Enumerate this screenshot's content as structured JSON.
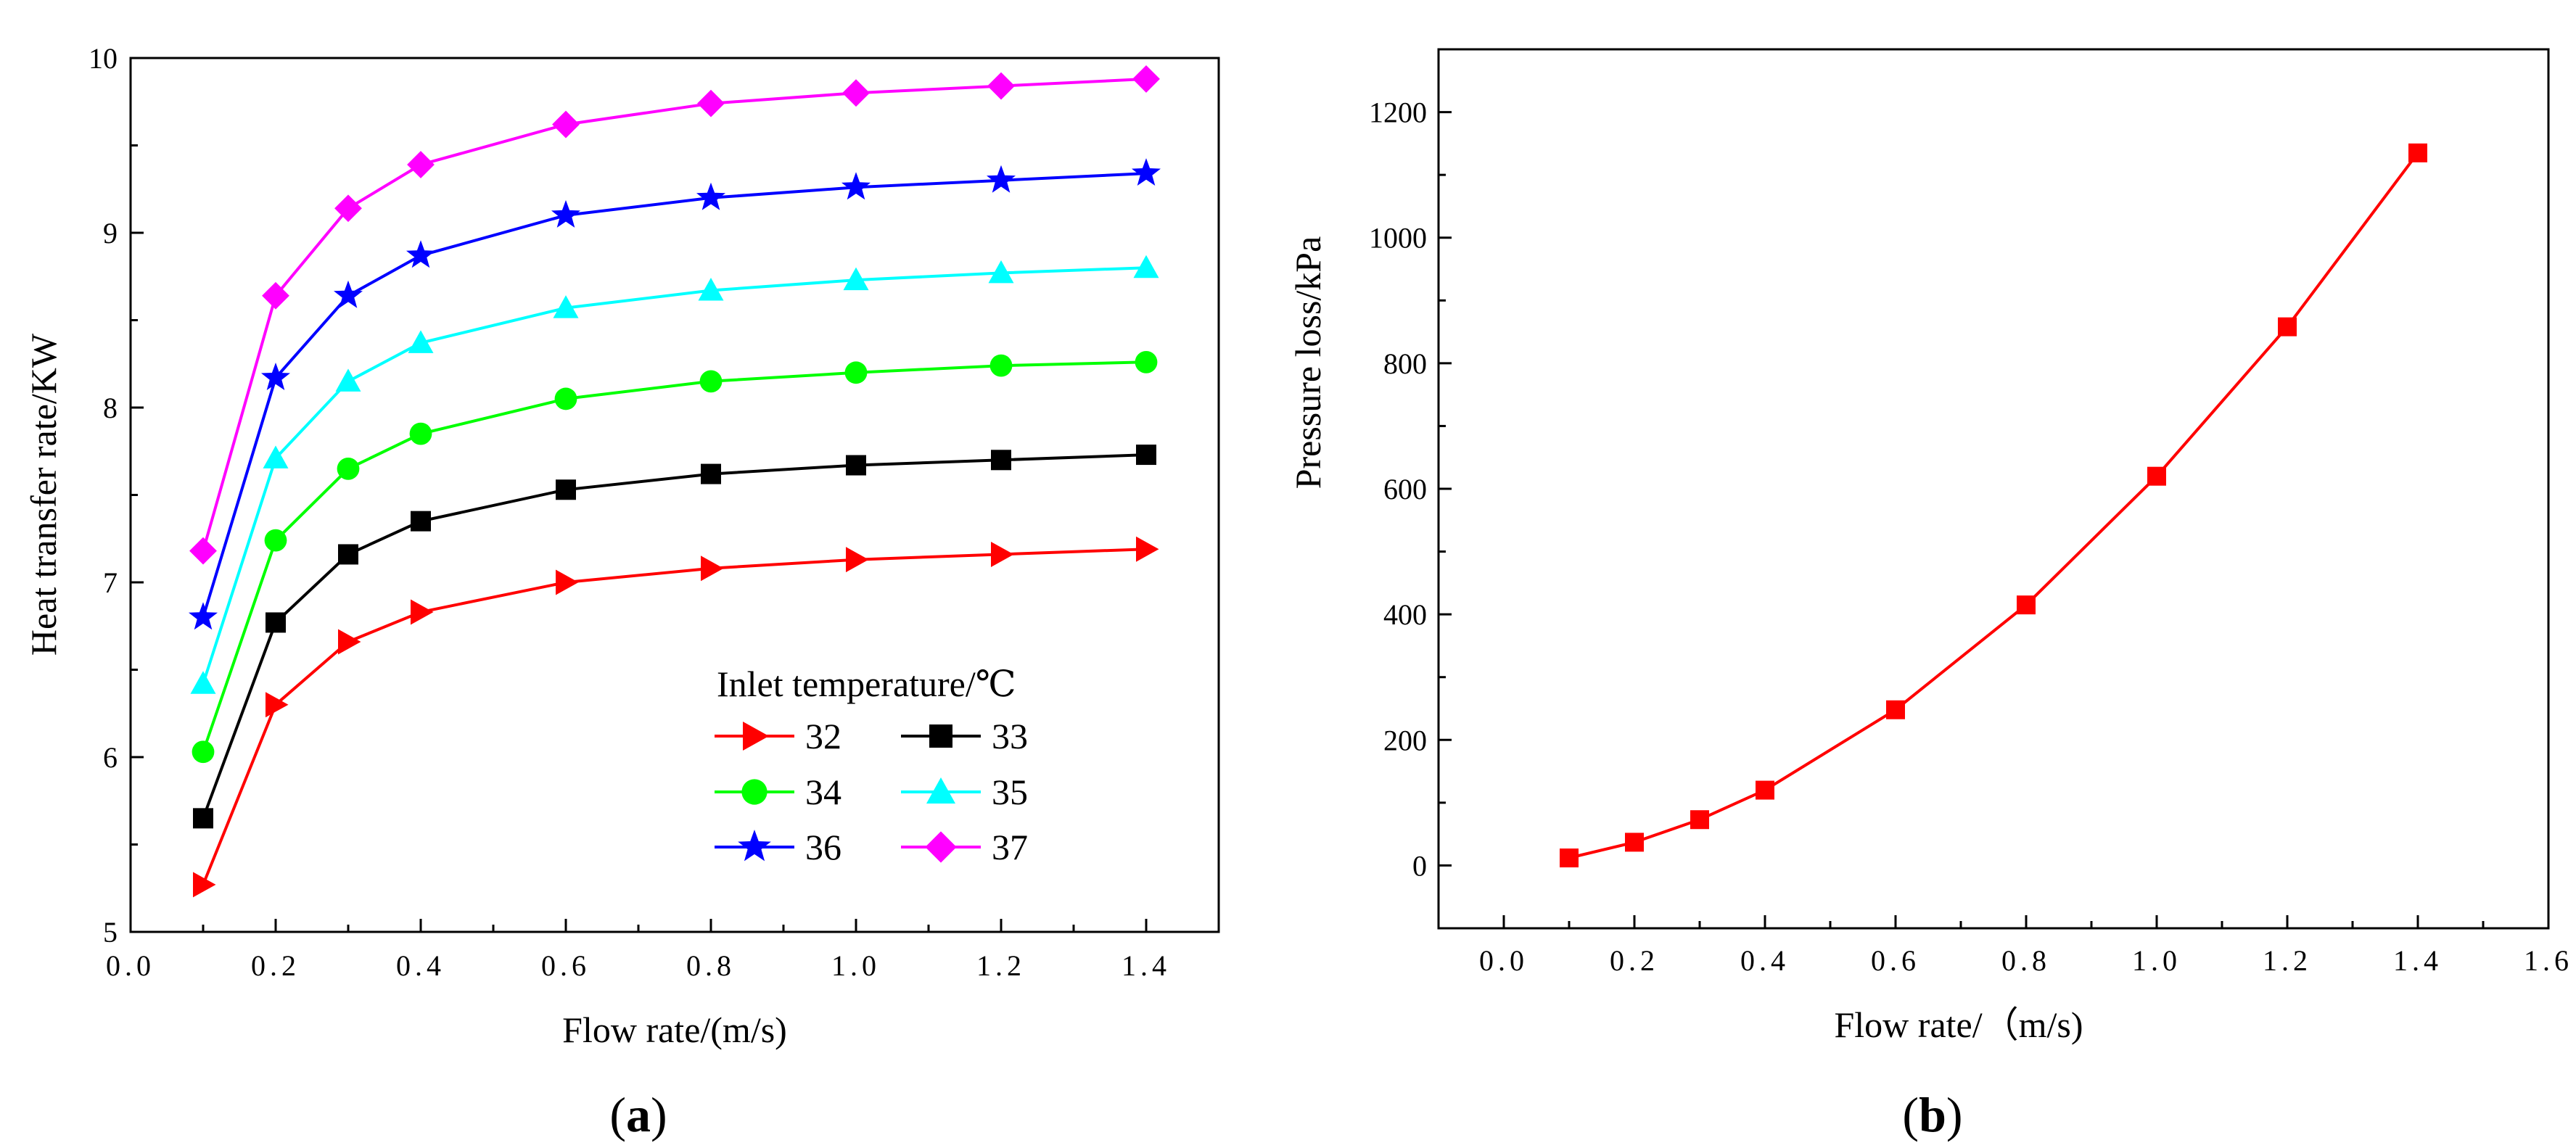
{
  "chart_data": [
    {
      "type": "line",
      "xlabel": "Flow rate/(m/s)",
      "ylabel": "Heat transfer rate/KW",
      "xlim": [
        0.0,
        1.5
      ],
      "ylim": [
        5,
        10
      ],
      "xticks": [
        "0.0",
        "0.2",
        "0.4",
        "0.6",
        "0.8",
        "1.0",
        "1.2",
        "1.4"
      ],
      "yticks": [
        "5",
        "6",
        "7",
        "8",
        "9",
        "10"
      ],
      "legend_title": "Inlet temperature/℃",
      "legend_position": "lower-right",
      "panel_label": "a",
      "x": [
        0.1,
        0.2,
        0.3,
        0.4,
        0.6,
        0.8,
        1.0,
        1.2,
        1.4
      ],
      "series": [
        {
          "name": "32",
          "color": "#ff0000",
          "marker": "triangle-right",
          "values": [
            5.27,
            6.3,
            6.66,
            6.83,
            7.0,
            7.08,
            7.13,
            7.16,
            7.19
          ]
        },
        {
          "name": "33",
          "color": "#000000",
          "marker": "square",
          "values": [
            5.65,
            6.77,
            7.16,
            7.35,
            7.53,
            7.62,
            7.67,
            7.7,
            7.73
          ]
        },
        {
          "name": "34",
          "color": "#00ff00",
          "marker": "circle",
          "values": [
            6.03,
            7.24,
            7.65,
            7.85,
            8.05,
            8.15,
            8.2,
            8.24,
            8.26
          ]
        },
        {
          "name": "35",
          "color": "#00ffff",
          "marker": "triangle-up",
          "values": [
            6.42,
            7.71,
            8.15,
            8.37,
            8.57,
            8.67,
            8.73,
            8.77,
            8.8
          ]
        },
        {
          "name": "36",
          "color": "#0000ff",
          "marker": "star",
          "values": [
            6.8,
            8.17,
            8.64,
            8.87,
            9.1,
            9.2,
            9.26,
            9.3,
            9.34
          ]
        },
        {
          "name": "37",
          "color": "#ff00ff",
          "marker": "diamond",
          "values": [
            7.18,
            8.64,
            9.14,
            9.39,
            9.62,
            9.74,
            9.8,
            9.84,
            9.88
          ]
        }
      ]
    },
    {
      "type": "line",
      "xlabel": "Flow rate/（m/s)",
      "ylabel": "Pressure loss/kPa",
      "xlim": [
        -0.1,
        1.6
      ],
      "ylim": [
        -100,
        1300
      ],
      "xticks": [
        "0.0",
        "0.2",
        "0.4",
        "0.6",
        "0.8",
        "1.0",
        "1.2",
        "1.4",
        "1.6"
      ],
      "yticks": [
        "0",
        "200",
        "400",
        "600",
        "800",
        "1000",
        "1200"
      ],
      "panel_label": "b",
      "x": [
        0.1,
        0.2,
        0.3,
        0.4,
        0.6,
        0.8,
        1.0,
        1.2,
        1.4
      ],
      "series": [
        {
          "name": "Pressure loss",
          "color": "#ff0000",
          "marker": "square",
          "values": [
            12,
            37,
            73,
            120,
            248,
            415,
            620,
            858,
            1135
          ]
        }
      ]
    }
  ]
}
